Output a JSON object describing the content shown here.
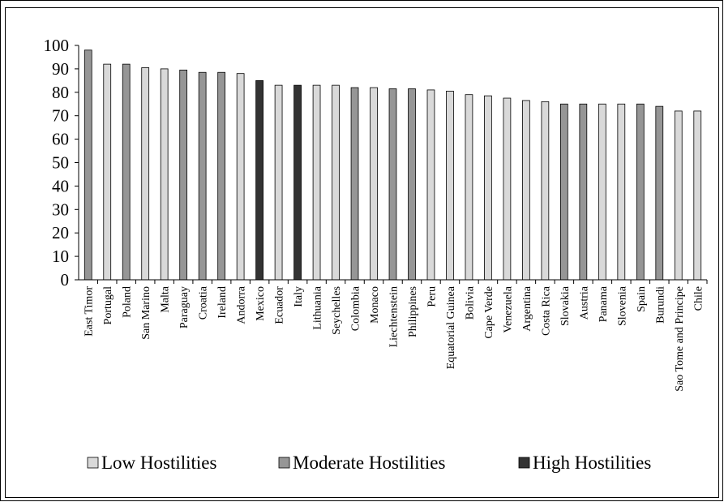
{
  "chart_data": {
    "type": "bar",
    "title": "",
    "xlabel": "",
    "ylabel": "",
    "ylim": [
      0,
      100
    ],
    "yticks": [
      0,
      10,
      20,
      30,
      40,
      50,
      60,
      70,
      80,
      90,
      100
    ],
    "grid": false,
    "legend_position": "bottom",
    "category_labels": {
      "Low": "Low Hostilities",
      "Moderate": "Moderate Hostilities",
      "High": "High Hostilities"
    },
    "colors": {
      "Low": "#d9d9d9",
      "Moderate": "#969696",
      "High": "#333333"
    },
    "categories": [
      "East Timor",
      "Portugal",
      "Poland",
      "San Marino",
      "Malta",
      "Paraguay",
      "Croatia",
      "Ireland",
      "Andorra",
      "Mexico",
      "Ecuador",
      "Italy",
      "Lithuania",
      "Seychelles",
      "Colombia",
      "Monaco",
      "Liechtenstein",
      "Philippines",
      "Peru",
      "Equatorial Guinea",
      "Bolivia",
      "Cape Verde",
      "Venezuela",
      "Argentina",
      "Costa Rica",
      "Slovakia",
      "Austria",
      "Panama",
      "Slovenia",
      "Spain",
      "Burundi",
      "Sao Tome and Principe",
      "Chile"
    ],
    "values": [
      98,
      92,
      92,
      90.5,
      90,
      89.5,
      88.5,
      88.5,
      88,
      85,
      83,
      83,
      83,
      83,
      82,
      82,
      81.5,
      81.5,
      81,
      80.5,
      79,
      78.5,
      77.5,
      76.5,
      76,
      75,
      75,
      75,
      75,
      75,
      74,
      72,
      72
    ],
    "groups": [
      "Moderate",
      "Low",
      "Moderate",
      "Low",
      "Low",
      "Moderate",
      "Moderate",
      "Moderate",
      "Low",
      "High",
      "Low",
      "High",
      "Low",
      "Low",
      "Moderate",
      "Low",
      "Moderate",
      "Moderate",
      "Low",
      "Low",
      "Low",
      "Low",
      "Low",
      "Low",
      "Low",
      "Moderate",
      "Moderate",
      "Low",
      "Low",
      "Moderate",
      "Moderate",
      "Low",
      "Low"
    ]
  }
}
